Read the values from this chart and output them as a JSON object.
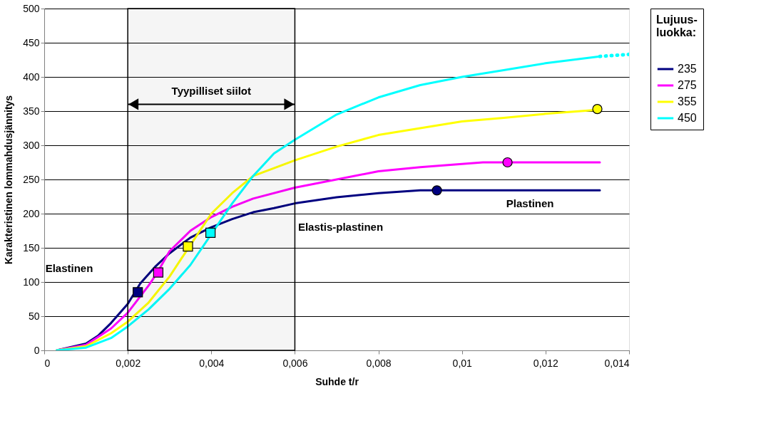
{
  "chart_data": {
    "type": "line",
    "xlabel": "Suhde t/r",
    "ylabel": "Karakteristinen lommahdusjännitys",
    "legend_title": "Lujuus-\nluokka:",
    "xlim": [
      0,
      0.014
    ],
    "xticks": [
      0,
      {
        "value": 0.002,
        "label": "0,002"
      },
      {
        "value": 0.004,
        "label": "0,004"
      },
      {
        "value": 0.006,
        "label": "0,006"
      },
      {
        "value": 0.008,
        "label": "0,008"
      },
      {
        "value": 0.01,
        "label": "0,01"
      },
      {
        "value": 0.012,
        "label": "0,012"
      },
      {
        "value": 0.014,
        "label": "0,014"
      }
    ],
    "ylim": [
      0,
      500
    ],
    "yticks": [
      0,
      50,
      100,
      150,
      200,
      250,
      300,
      350,
      400,
      450,
      500
    ],
    "grid": "y",
    "legend": "right",
    "marker": "none",
    "line_style": "solid",
    "series": [
      {
        "name": "235",
        "color": "#000080",
        "x": [
          0.0003,
          0.001,
          0.0013,
          0.0016,
          0.002,
          0.0023,
          0.00265,
          0.003,
          0.0035,
          0.004,
          0.0045,
          0.005,
          0.0055,
          0.006,
          0.007,
          0.008,
          0.009,
          0.0094,
          0.0133
        ],
        "values": [
          0,
          10,
          22,
          40,
          68,
          98,
          122,
          142,
          165,
          180,
          192,
          202,
          208,
          215,
          224,
          230,
          234,
          234,
          234
        ]
      },
      {
        "name": "275",
        "color": "#ff00ff",
        "x": [
          0.0003,
          0.001,
          0.0016,
          0.002,
          0.0025,
          0.0027,
          0.003,
          0.0035,
          0.004,
          0.0045,
          0.005,
          0.006,
          0.007,
          0.008,
          0.009,
          0.0105,
          0.0133
        ],
        "values": [
          0,
          8,
          32,
          55,
          95,
          113,
          145,
          175,
          195,
          210,
          222,
          238,
          250,
          262,
          268,
          275,
          275
        ]
      },
      {
        "name": "355",
        "color": "#ffff00",
        "x": [
          0.0003,
          0.001,
          0.0016,
          0.002,
          0.0025,
          0.003,
          0.0034,
          0.004,
          0.0045,
          0.005,
          0.006,
          0.007,
          0.008,
          0.009,
          0.01,
          0.011,
          0.012,
          0.0133
        ],
        "values": [
          0,
          6,
          25,
          42,
          70,
          108,
          145,
          200,
          230,
          255,
          278,
          298,
          315,
          325,
          335,
          340,
          346,
          352
        ]
      },
      {
        "name": "450",
        "color": "#00ffff",
        "x": [
          0.0003,
          0.001,
          0.0016,
          0.002,
          0.0025,
          0.003,
          0.0035,
          0.004,
          0.0045,
          0.005,
          0.0055,
          0.006,
          0.007,
          0.008,
          0.009,
          0.01,
          0.011,
          0.012,
          0.0133
        ],
        "values": [
          0,
          4,
          18,
          35,
          60,
          90,
          125,
          170,
          215,
          255,
          288,
          308,
          345,
          370,
          388,
          400,
          410,
          420,
          430
        ]
      },
      {
        "color": "#00ffff",
        "line_style": "dotted",
        "x": [
          0.0133,
          0.014
        ],
        "values": [
          430,
          433
        ]
      },
      {
        "type": "scatter",
        "marker": "square",
        "color": "#000080",
        "x": [
          0.00224
        ],
        "values": [
          85
        ]
      },
      {
        "type": "scatter",
        "marker": "square",
        "color": "#ff00ff",
        "x": [
          0.00273
        ],
        "values": [
          114
        ]
      },
      {
        "type": "scatter",
        "marker": "square",
        "color": "#ffff00",
        "x": [
          0.00344
        ],
        "values": [
          152
        ]
      },
      {
        "type": "scatter",
        "marker": "square",
        "color": "#00ffff",
        "x": [
          0.00398
        ],
        "values": [
          172
        ]
      },
      {
        "type": "scatter",
        "marker": "circle",
        "color": "#000080",
        "x": [
          0.0094
        ],
        "values": [
          234
        ]
      },
      {
        "type": "scatter",
        "marker": "circle",
        "color": "#ff00ff",
        "x": [
          0.01109
        ],
        "values": [
          275
        ]
      },
      {
        "type": "scatter",
        "marker": "circle",
        "color": "#ffff00",
        "x": [
          0.01324
        ],
        "values": [
          353
        ]
      }
    ],
    "bands": [
      {
        "axis": "x",
        "from": 0.002,
        "to": 0.006,
        "label": "Tyypilliset siilot"
      }
    ],
    "annotations": [
      "Elastinen",
      "Elastis-plastinen",
      "Plastinen"
    ]
  }
}
